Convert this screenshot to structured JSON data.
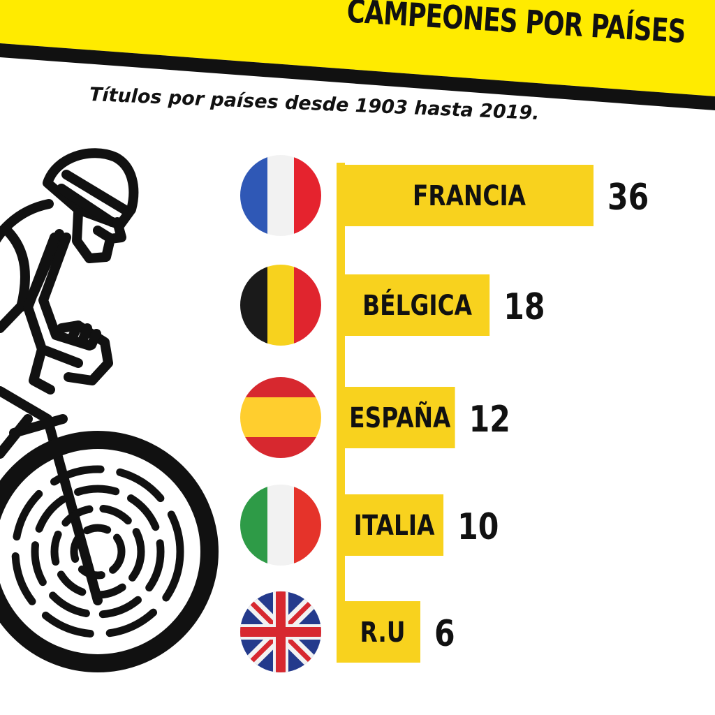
{
  "header": {
    "title": "CAMPEONES POR PAÍSES",
    "subtitle": "Títulos por países desde 1903 hasta 2019."
  },
  "colors": {
    "accent_yellow": "#FFEB00",
    "bar_yellow": "#F8D21E",
    "dark": "#111111"
  },
  "chart_data": {
    "type": "bar",
    "orientation": "horizontal",
    "title": "CAMPEONES POR PAÍSES",
    "subtitle": "Títulos por países desde 1903 hasta 2019.",
    "categories": [
      "FRANCIA",
      "BÉLGICA",
      "ESPAÑA",
      "ITALIA",
      "R.U"
    ],
    "values": [
      36,
      18,
      12,
      10,
      6
    ],
    "flag_icons": [
      "france-flag-icon",
      "belgium-flag-icon",
      "spain-flag-icon",
      "italy-flag-icon",
      "uk-flag-icon"
    ],
    "grid": false,
    "legend": "none"
  },
  "illustration": {
    "icon": "cyclist-icon"
  }
}
